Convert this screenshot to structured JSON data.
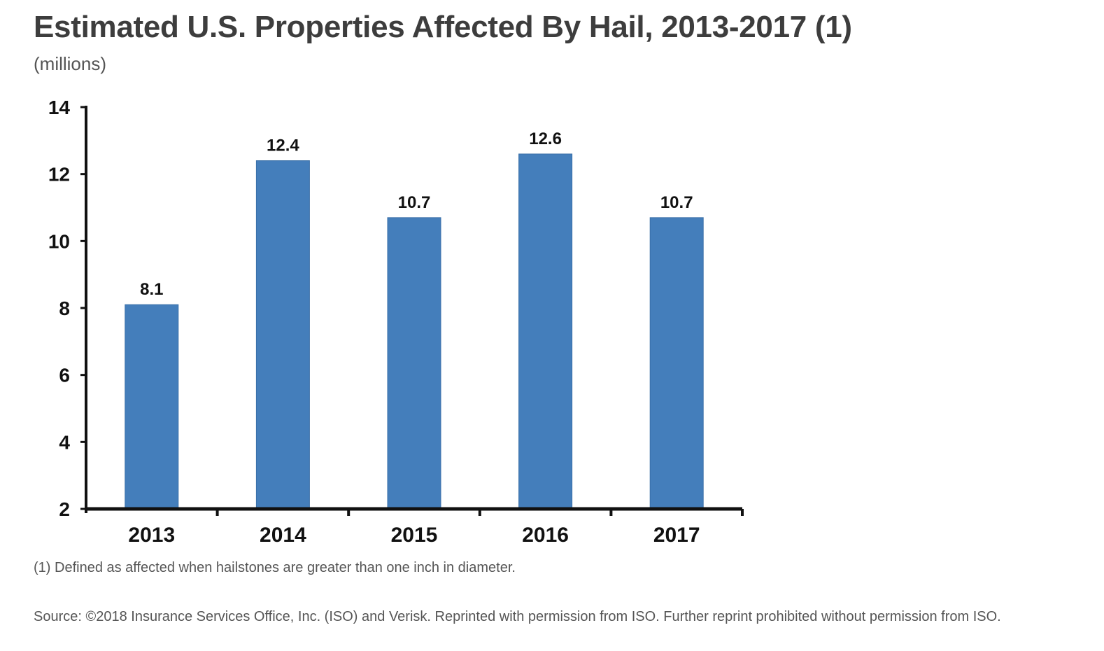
{
  "header": {
    "title": "Estimated U.S. Properties Affected By Hail, 2013-2017 (1)",
    "subtitle": "(millions)"
  },
  "footer": {
    "footnote": "(1) Defined as affected when hailstones are greater than one inch in diameter.",
    "source": "Source: ©2018 Insurance Services Office, Inc. (ISO) and Verisk. Reprinted with permission from ISO. Further reprint prohibited without permission from ISO."
  },
  "colors": {
    "bar": "#447ebb",
    "bar_edge": "#3a6fa8",
    "axis": "#111111",
    "title": "#3d3d3d",
    "text": "#555555"
  },
  "chart_data": {
    "type": "bar",
    "title": "Estimated U.S. Properties Affected By Hail, 2013-2017 (1)",
    "subtitle": "(millions)",
    "categories": [
      "2013",
      "2014",
      "2015",
      "2016",
      "2017"
    ],
    "values": [
      8.1,
      12.4,
      10.7,
      12.6,
      10.7
    ],
    "value_labels": [
      "8.1",
      "12.4",
      "10.7",
      "12.6",
      "10.7"
    ],
    "ylim": [
      2,
      14
    ],
    "yticks": [
      2,
      4,
      6,
      8,
      10,
      12,
      14
    ],
    "xlabel": "",
    "ylabel": "",
    "grid": false,
    "legend": "none"
  }
}
